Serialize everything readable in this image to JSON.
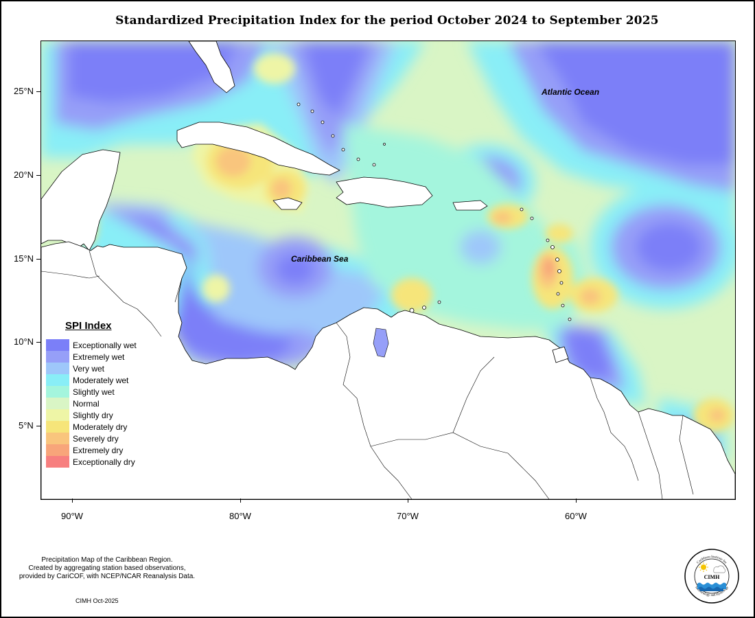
{
  "title": "Standardized Precipitation Index for the period October 2024 to September 2025",
  "map": {
    "labels": {
      "atlantic": "Atlantic Ocean",
      "caribbean": "Caribbean Sea"
    },
    "lat_ticks": [
      "25°N",
      "20°N",
      "15°N",
      "10°N",
      "5°N"
    ],
    "lon_ticks": [
      "90°W",
      "80°W",
      "70°W",
      "60°W"
    ]
  },
  "legend": {
    "title": "SPI Index",
    "items": [
      {
        "label": "Exceptionally wet",
        "color": "#7b7ff8"
      },
      {
        "label": "Extremely wet",
        "color": "#969ff8"
      },
      {
        "label": "Very wet",
        "color": "#9ec7fa"
      },
      {
        "label": "Moderately wet",
        "color": "#89eef7"
      },
      {
        "label": "Slightly wet",
        "color": "#a4f5dd"
      },
      {
        "label": "Normal",
        "color": "#d9f5c5"
      },
      {
        "label": "Slightly dry",
        "color": "#eef5a6"
      },
      {
        "label": "Moderately dry",
        "color": "#f6e57a"
      },
      {
        "label": "Severely dry",
        "color": "#f9c57d"
      },
      {
        "label": "Extremely dry",
        "color": "#f8a57a"
      },
      {
        "label": "Exceptionally dry",
        "color": "#f77f7f"
      }
    ]
  },
  "credit": {
    "line1": "Precipitation Map of the Caribbean Region.",
    "line2": "Created by aggregating station based observations,",
    "line3": "provided by CariCOF, with NCEP/NCAR Reanalysis Data.",
    "stamp": "CIMH Oct-2025"
  },
  "logo": {
    "text": "CIMH",
    "ring_text_top": "Caribbean Institute for",
    "ring_text_bottom": "Meteorology and Hydrology"
  }
}
